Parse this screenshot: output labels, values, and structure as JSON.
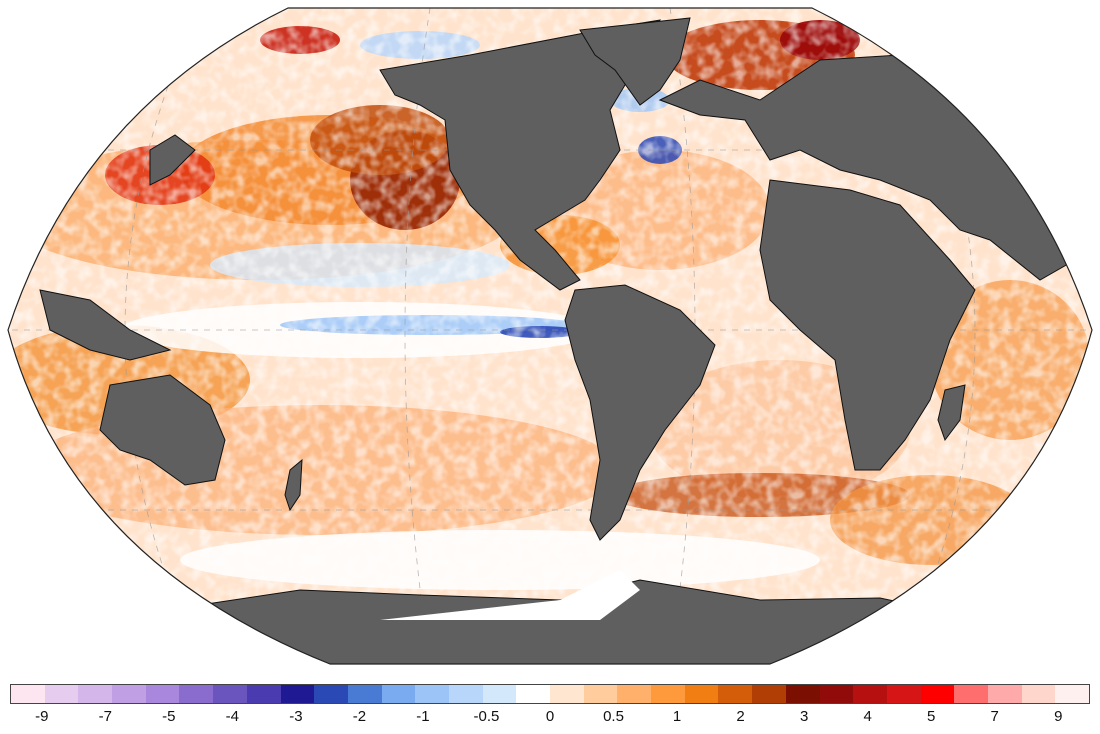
{
  "map": {
    "projection": "robinson",
    "land_color": "#5f5f5f",
    "coast_color": "#111111",
    "ocean_neutral": "#ffffff",
    "icons": [
      "world-map",
      "antarctica-ice-shelf"
    ]
  },
  "colorbar": {
    "colors": [
      "#fde6f0",
      "#e6cdef",
      "#d4b6ea",
      "#c09fe4",
      "#a887dc",
      "#8a6ccf",
      "#6a54be",
      "#4a3bb0",
      "#1f1a93",
      "#2b49b5",
      "#4a7bd4",
      "#7aaaf0",
      "#9cc4f7",
      "#b7d6fa",
      "#d4e8fc",
      "#ffffff",
      "#ffe6d1",
      "#ffcc9e",
      "#ffb06b",
      "#ff9a3c",
      "#f07e12",
      "#d45d0a",
      "#b03e05",
      "#7a0f02",
      "#920b0b",
      "#b71010",
      "#d61616",
      "#ff0000",
      "#ff6e6e",
      "#ffaaaa",
      "#ffd6cc",
      "#fff0f0"
    ],
    "labels": [
      "-9",
      "-7",
      "-5",
      "-4",
      "-3",
      "-2",
      "-1",
      "-0.5",
      "0",
      "0.5",
      "1",
      "2",
      "3",
      "4",
      "5",
      "7",
      "9"
    ],
    "label_positions": [
      1.5,
      3.5,
      5.5,
      7.5,
      9.5,
      11.5,
      13.5,
      15.5,
      17.5,
      19.5,
      21.5,
      23.5,
      25.5,
      27.5,
      29.5,
      31.5,
      33.5
    ]
  }
}
